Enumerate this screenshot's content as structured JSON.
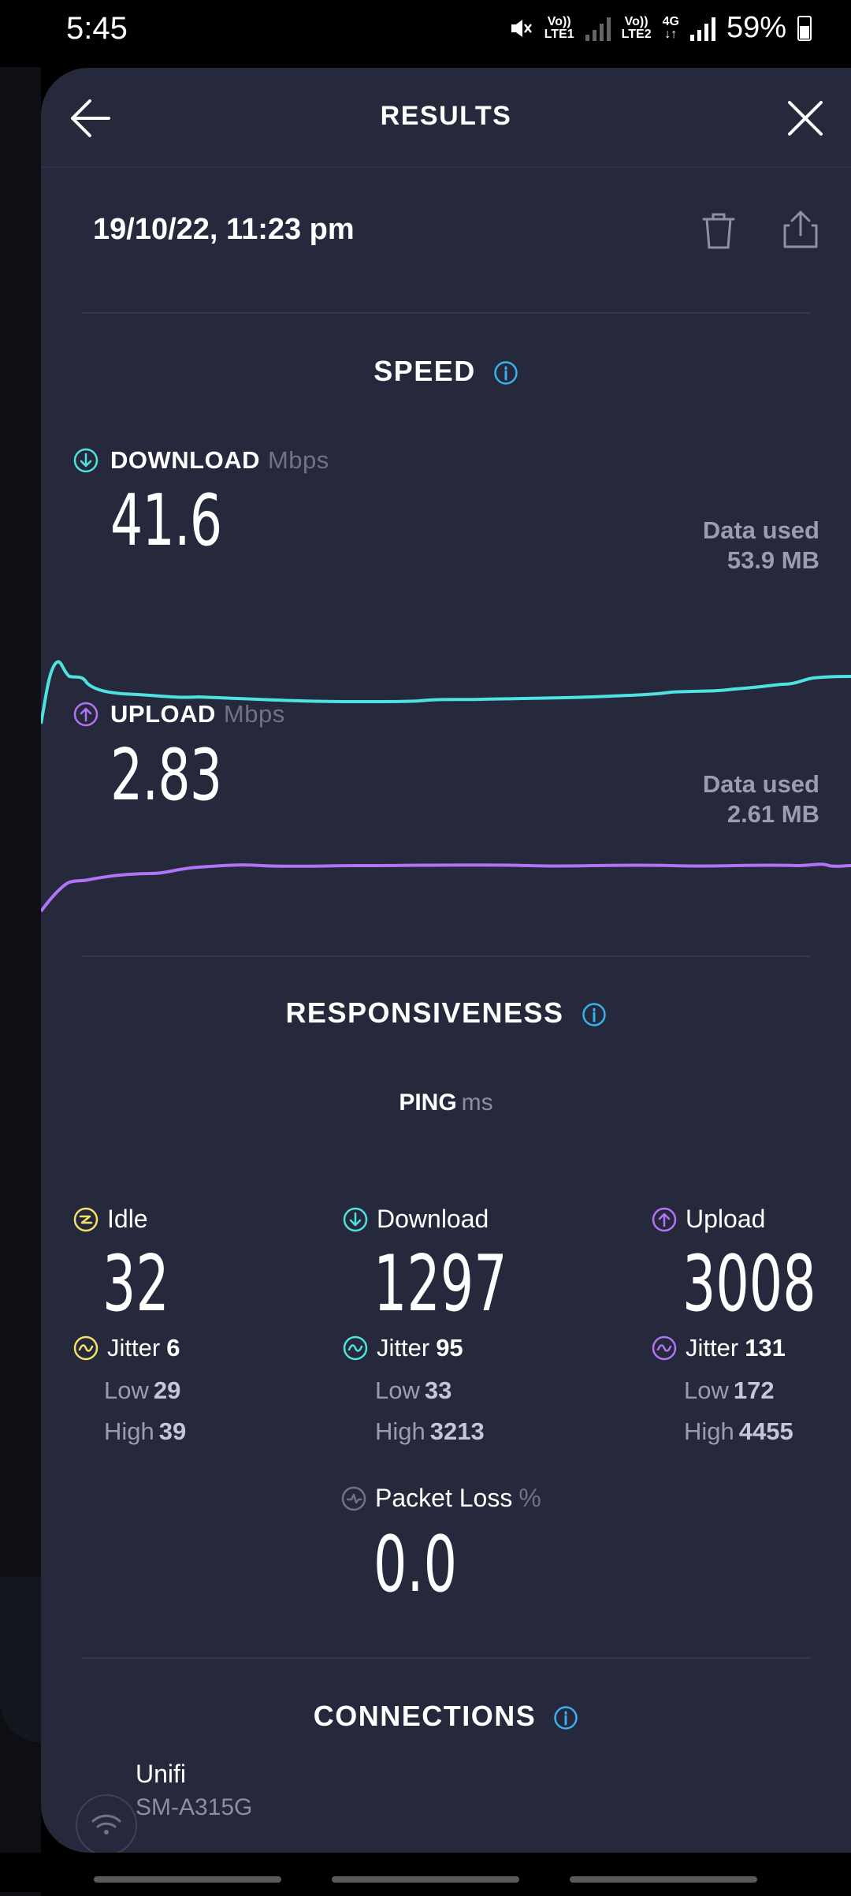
{
  "status_bar": {
    "time": "5:45",
    "sim1_label": "Vo)) LTE1",
    "sim2_label": "Vo)) LTE2",
    "network_type": "4G",
    "battery": "59%"
  },
  "header": {
    "title": "RESULTS",
    "back_icon": "arrow-left-icon",
    "close_icon": "close-icon"
  },
  "test": {
    "datetime": "19/10/22, 11:23 pm"
  },
  "speed": {
    "section_title": "SPEED",
    "download": {
      "label": "DOWNLOAD",
      "unit": "Mbps",
      "value": "41.6",
      "data_used_label": "Data used",
      "data_used_value": "53.9 MB",
      "color": "#4fe3e0"
    },
    "upload": {
      "label": "UPLOAD",
      "unit": "Mbps",
      "value": "2.83",
      "data_used_label": "Data used",
      "data_used_value": "2.61 MB",
      "color": "#b174f4"
    }
  },
  "responsiveness": {
    "section_title": "RESPONSIVENESS",
    "ping_label": "PING",
    "ping_unit": "ms",
    "idle": {
      "label": "Idle",
      "value": "32",
      "jitter_label": "Jitter",
      "jitter": "6",
      "low_label": "Low",
      "low": "29",
      "high_label": "High",
      "high": "39",
      "color": "#f3e36b"
    },
    "download": {
      "label": "Download",
      "value": "1297",
      "jitter_label": "Jitter",
      "jitter": "95",
      "low_label": "Low",
      "low": "33",
      "high_label": "High",
      "high": "3213",
      "color": "#4fe3e0"
    },
    "upload": {
      "label": "Upload",
      "value": "3008",
      "jitter_label": "Jitter",
      "jitter": "131",
      "low_label": "Low",
      "low": "172",
      "high_label": "High",
      "high": "4455",
      "color": "#b174f4"
    },
    "packet_loss": {
      "label": "Packet Loss",
      "unit": "%",
      "value": "0.0"
    }
  },
  "connections": {
    "section_title": "CONNECTIONS",
    "items": [
      {
        "name": "Unifi",
        "device": "SM-A315G"
      }
    ]
  },
  "accent_info_color": "#3ab0f0"
}
